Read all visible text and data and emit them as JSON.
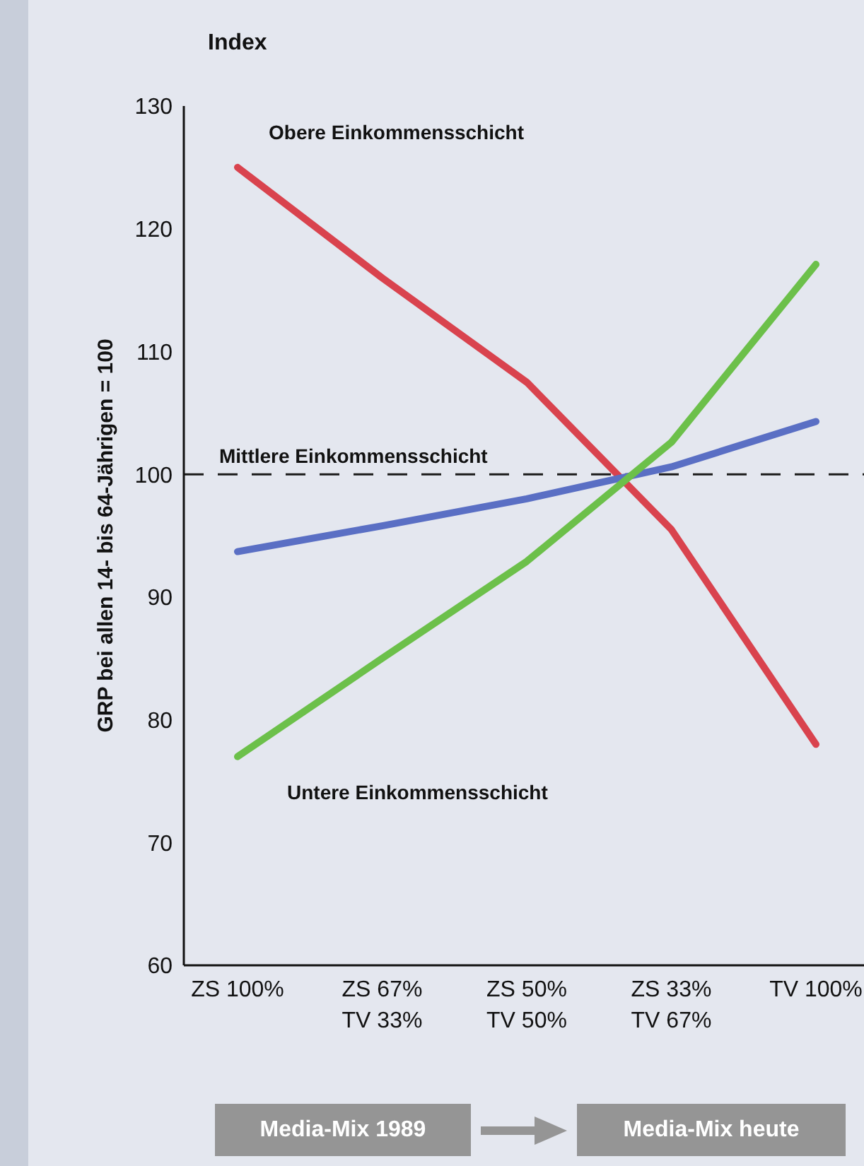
{
  "chart_data": {
    "type": "line",
    "ylabel": "GRP bei allen 14- bis 64-Jährigen = 100",
    "categories": [
      "ZS 100%",
      "ZS 67%\nTV 33%",
      "ZS 50%\nTV 50%",
      "ZS 33%\nTV 67%",
      "TV 100%"
    ],
    "series": [
      {
        "name": "Obere Einkommensschicht",
        "color": "#d9434e",
        "values": [
          125,
          116,
          107.5,
          95.5,
          78
        ]
      },
      {
        "name": "Mittlere Einkommensschicht",
        "color": "#5a6fc4",
        "values": [
          93.7,
          95.8,
          98,
          100.6,
          104.3
        ]
      },
      {
        "name": "Untere Einkommensschicht",
        "color": "#6cc04a",
        "values": [
          77,
          85,
          92.9,
          102.6,
          117.1
        ]
      }
    ],
    "ylim": [
      60,
      130
    ],
    "yticks": [
      60,
      70,
      80,
      90,
      100,
      110,
      120,
      130
    ],
    "ref_lines": [
      {
        "axis": "y",
        "value": 100,
        "line_style": "dashed",
        "color": "#1a1a1a"
      }
    ],
    "annotations": [
      "Index",
      "Media-Mix 1989",
      "Media-Mix heute"
    ],
    "grid": false,
    "legend": false,
    "marker": "none",
    "line_style": "solid"
  }
}
